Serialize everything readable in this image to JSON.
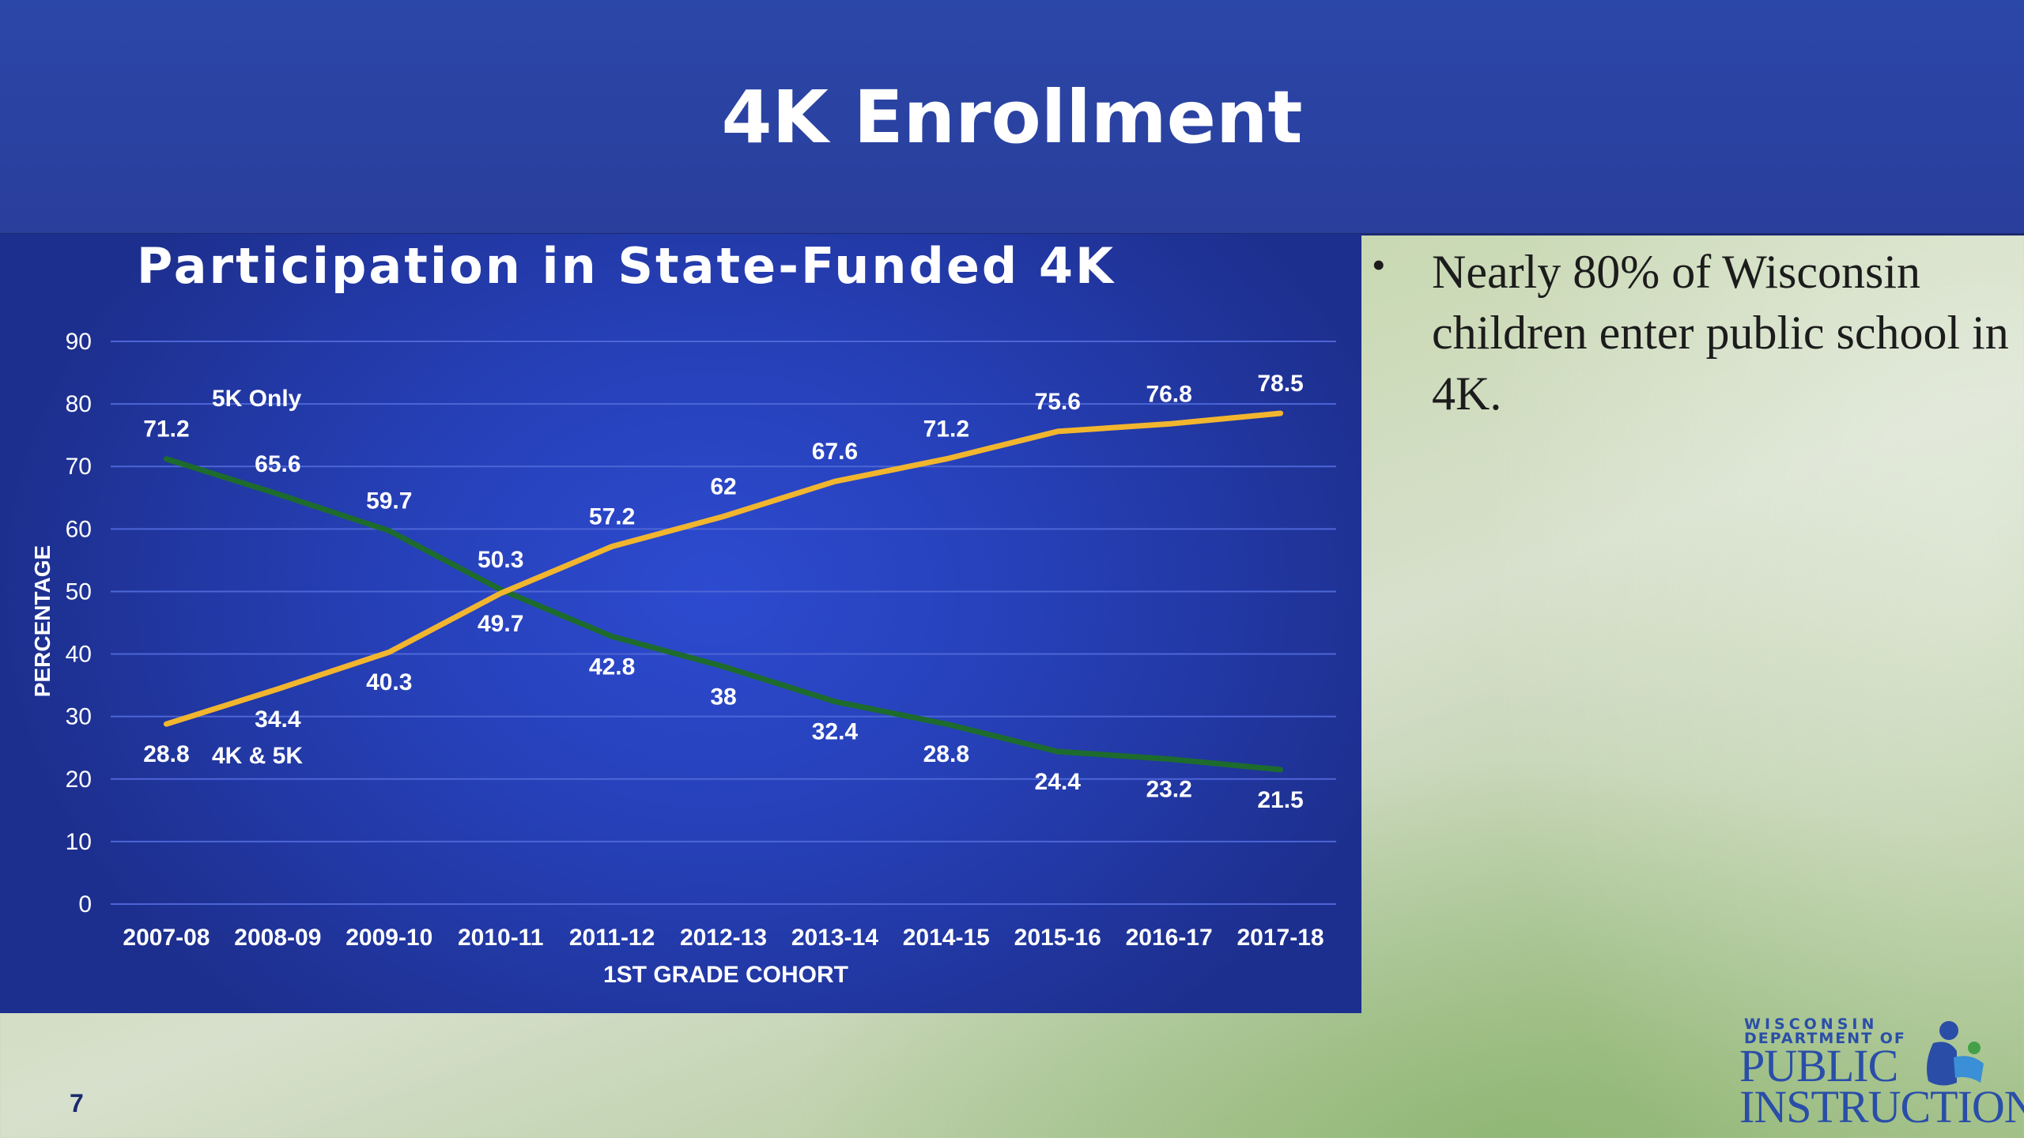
{
  "slide": {
    "title": "4K Enrollment",
    "page_number": "7",
    "bullet": "Nearly 80% of Wisconsin children enter public school in 4K."
  },
  "logo": {
    "line1": "WISCONSIN",
    "line2": "DEPARTMENT OF",
    "line3": "PUBLIC",
    "line4": "INSTRUCTION"
  },
  "colors": {
    "header": "#2b47a8",
    "chart_bg": "#2640b8",
    "series_5k": "#1e6b2e",
    "series_4k5k": "#f2b52e",
    "text": "#ffffff"
  },
  "chart_data": {
    "type": "line",
    "title": "Participation in State-Funded 4K",
    "xlabel": "1ST GRADE COHORT",
    "ylabel": "PERCENTAGE",
    "ylim": [
      0,
      90
    ],
    "yticks": [
      0,
      10,
      20,
      30,
      40,
      50,
      60,
      70,
      80,
      90
    ],
    "grid": true,
    "categories": [
      "2007-08",
      "2008-09",
      "2009-10",
      "2010-11",
      "2011-12",
      "2012-13",
      "2013-14",
      "2014-15",
      "2015-16",
      "2016-17",
      "2017-18"
    ],
    "series": [
      {
        "name": "5K Only",
        "color": "#1e6b2e",
        "values": [
          71.2,
          65.6,
          59.7,
          50.3,
          42.8,
          38,
          32.4,
          28.8,
          24.4,
          23.2,
          21.5
        ]
      },
      {
        "name": "4K & 5K",
        "color": "#f2b52e",
        "values": [
          28.8,
          34.4,
          40.3,
          49.7,
          57.2,
          62,
          67.6,
          71.2,
          75.6,
          76.8,
          78.5
        ]
      }
    ]
  }
}
